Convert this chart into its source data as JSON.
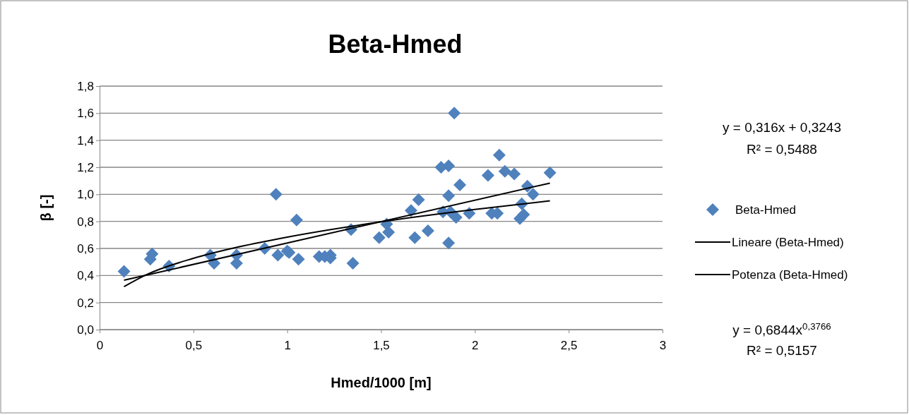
{
  "chart_data": {
    "type": "scatter",
    "title": "Beta-Hmed",
    "xlabel": "Hmed/1000 [m]",
    "ylabel": "β [-]",
    "xlim": [
      0,
      3
    ],
    "xticks": [
      0,
      {
        "value": 0.5,
        "label": "0,5"
      },
      1,
      {
        "value": 1.5,
        "label": "1,5"
      },
      2,
      {
        "value": 2.5,
        "label": "2,5"
      },
      3
    ],
    "ylim": [
      0,
      1.8
    ],
    "yticks": [
      {
        "value": 0,
        "label": "0,0"
      },
      {
        "value": 0.2,
        "label": "0,2"
      },
      {
        "value": 0.4,
        "label": "0,4"
      },
      {
        "value": 0.6,
        "label": "0,6"
      },
      {
        "value": 0.8,
        "label": "0,8"
      },
      {
        "value": 1.0,
        "label": "1,0"
      },
      {
        "value": 1.2,
        "label": "1,2"
      },
      {
        "value": 1.4,
        "label": "1,4"
      },
      {
        "value": 1.6,
        "label": "1,6"
      },
      {
        "value": 1.8,
        "label": "1,8"
      }
    ],
    "grid": "y",
    "legend": "right",
    "series": [
      {
        "name": "Beta-Hmed",
        "marker": "diamond",
        "color": "#4f81bd",
        "x": [
          0.13,
          0.27,
          0.28,
          0.37,
          0.59,
          0.61,
          0.73,
          0.73,
          0.88,
          0.94,
          0.95,
          1.0,
          1.01,
          1.05,
          1.06,
          1.17,
          1.2,
          1.23,
          1.23,
          1.34,
          1.35,
          1.49,
          1.53,
          1.54,
          1.66,
          1.68,
          1.7,
          1.75,
          1.82,
          1.83,
          1.86,
          1.86,
          1.86,
          1.87,
          1.89,
          1.9,
          1.92,
          1.97,
          2.07,
          2.09,
          2.12,
          2.13,
          2.16,
          2.21,
          2.24,
          2.25,
          2.26,
          2.28,
          2.31,
          2.4
        ],
        "values": [
          0.43,
          0.52,
          0.56,
          0.47,
          0.55,
          0.49,
          0.55,
          0.49,
          0.6,
          1.0,
          0.55,
          0.58,
          0.57,
          0.81,
          0.52,
          0.54,
          0.54,
          0.55,
          0.53,
          0.74,
          0.49,
          0.68,
          0.78,
          0.72,
          0.88,
          0.68,
          0.96,
          0.73,
          1.2,
          0.87,
          1.21,
          0.99,
          0.64,
          0.87,
          1.6,
          0.83,
          1.07,
          0.86,
          1.14,
          0.86,
          0.86,
          1.29,
          1.17,
          1.15,
          0.82,
          0.93,
          0.85,
          1.06,
          1.0,
          1.16
        ]
      },
      {
        "name": "Lineare (Beta-Hmed)",
        "type": "line",
        "marker": "none",
        "color": "#000000",
        "x": [
          0.13,
          2.4
        ],
        "values": [
          0.365,
          1.083
        ]
      },
      {
        "name": "Potenza (Beta-Hmed)",
        "type": "line",
        "marker": "none",
        "color": "#000000",
        "x": [
          0.13,
          0.25,
          0.5,
          0.75,
          1,
          1.5,
          2,
          2.4
        ],
        "values": [
          0.317,
          0.406,
          0.527,
          0.614,
          0.684,
          0.797,
          0.888,
          0.952
        ]
      }
    ],
    "annotations": [
      "y = 0,316x + 0,3243",
      "R² = 0,5488",
      "y = 0,6844x$^{0,3766}$",
      "R² = 0,5157"
    ]
  }
}
